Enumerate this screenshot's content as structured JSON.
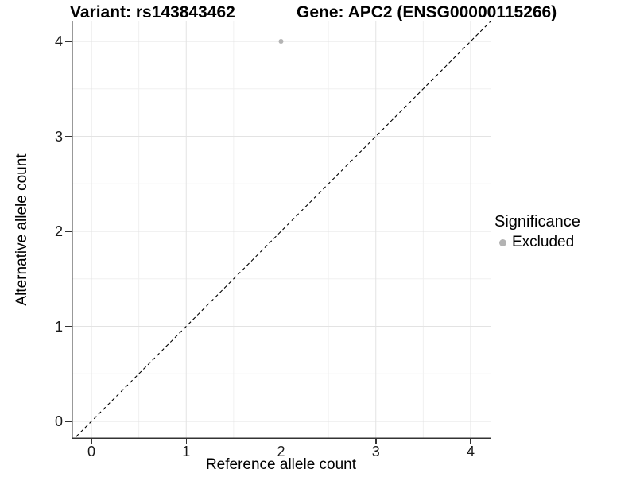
{
  "titles": {
    "left": "Variant: rs143843462",
    "right": "Gene: APC2 (ENSG00000115266)"
  },
  "chart_data": {
    "type": "scatter",
    "title": "Variant: rs143843462 / Gene: APC2 (ENSG00000115266)",
    "xlabel": "Reference allele count",
    "ylabel": "Alternative allele count",
    "xlim": [
      -0.21,
      4.21
    ],
    "ylim": [
      -0.185,
      4.185
    ],
    "x_ticks": [
      0,
      1,
      2,
      3,
      4
    ],
    "y_ticks": [
      0,
      1,
      2,
      3,
      4
    ],
    "grid": {
      "major": true,
      "minor": true
    },
    "series": [
      {
        "name": "Excluded",
        "color": "#b3b3b3",
        "points": [
          {
            "x": 2,
            "y": 4
          }
        ]
      }
    ],
    "reference_line": {
      "kind": "identity",
      "equation": "y = x",
      "style": "dashed",
      "color": "#000000"
    },
    "legend": {
      "title": "Significance",
      "position": "right",
      "items": [
        {
          "label": "Excluded",
          "color": "#b3b3b3"
        }
      ]
    },
    "colors": {
      "background": "#ffffff",
      "axis_line": "#333333",
      "tick_text": "#1a1a1a",
      "grid_major": "#e3e3e3",
      "grid_minor": "#f0f0f0"
    }
  }
}
